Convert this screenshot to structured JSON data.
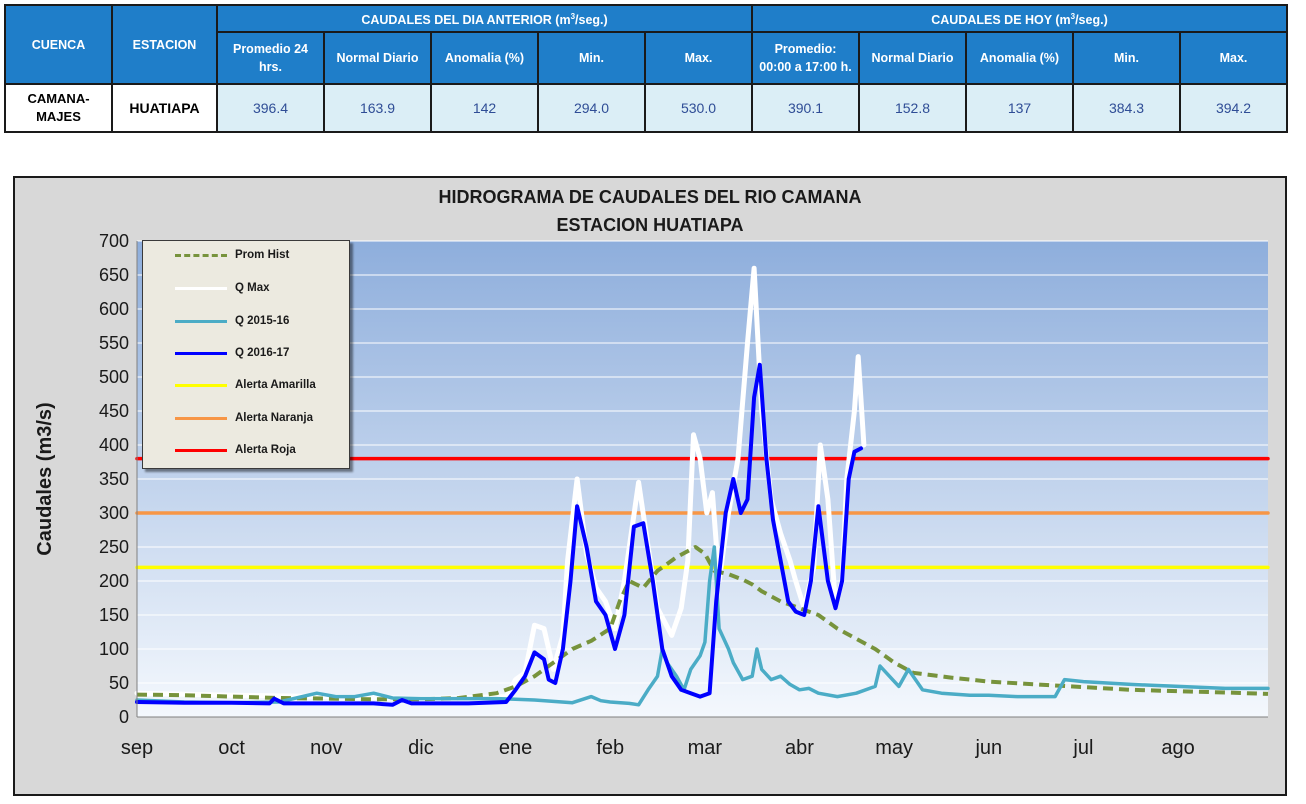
{
  "table": {
    "cuenca_header": "CUENCA",
    "estacion_header": "ESTACION",
    "prev_group_title": "CAUDALES DEL DIA ANTERIOR (m",
    "prev_group_sup": "3",
    "prev_group_tail": "/seg.)",
    "today_group_title": "CAUDALES DE HOY (m",
    "today_group_sup": "3",
    "today_group_tail": "/seg.)",
    "prev_cols": {
      "promedio_line1": "Promedio 24",
      "promedio_line2": "hrs.",
      "normal": "Normal Diario",
      "anomalia": "Anomalia (%)",
      "min": "Min.",
      "max": "Max."
    },
    "today_cols": {
      "promedio_line1": "Promedio:",
      "promedio_line2": "00:00 a 17:00 h.",
      "normal": "Normal Diario",
      "anomalia": "Anomalia (%)",
      "min": "Min.",
      "max": "Max."
    },
    "row": {
      "cuenca_line1": "CAMANA-",
      "cuenca_line2": "MAJES",
      "estacion": "HUATIAPA",
      "prev": {
        "promedio": "396.4",
        "normal": "163.9",
        "anomalia": "142",
        "min": "294.0",
        "max": "530.0"
      },
      "today": {
        "promedio": "390.1",
        "normal": "152.8",
        "anomalia": "137",
        "min": "384.3",
        "max": "394.2"
      }
    }
  },
  "chart_data": {
    "type": "line",
    "title": "HIDROGRAMA DE CAUDALES  DEL RIO CAMANA",
    "subtitle": "ESTACION HUATIAPA",
    "xlabel": "",
    "ylabel": "Caudales (m3/s)",
    "x_ticks": [
      "sep",
      "oct",
      "nov",
      "dic",
      "ene",
      "feb",
      "mar",
      "abr",
      "may",
      "jun",
      "jul",
      "ago"
    ],
    "xlim": [
      0,
      11.95
    ],
    "ylim": [
      0,
      700
    ],
    "y_ticks": [
      0,
      50,
      100,
      150,
      200,
      250,
      300,
      350,
      400,
      450,
      500,
      550,
      600,
      650,
      700
    ],
    "grid": "horizontal",
    "legend_position": "top-left",
    "series": [
      {
        "name": "Prom Hist",
        "color": "#77933c",
        "style": "dashed",
        "width": 4,
        "points": [
          [
            0,
            33
          ],
          [
            0.5,
            32
          ],
          [
            1,
            30
          ],
          [
            1.5,
            28
          ],
          [
            2,
            27
          ],
          [
            2.5,
            26
          ],
          [
            3,
            26
          ],
          [
            3.4,
            28
          ],
          [
            3.8,
            35
          ],
          [
            4,
            45
          ],
          [
            4.2,
            60
          ],
          [
            4.4,
            80
          ],
          [
            4.6,
            100
          ],
          [
            4.8,
            112
          ],
          [
            5,
            130
          ],
          [
            5.1,
            170
          ],
          [
            5.2,
            200
          ],
          [
            5.35,
            190
          ],
          [
            5.5,
            215
          ],
          [
            5.7,
            235
          ],
          [
            5.9,
            250
          ],
          [
            6,
            240
          ],
          [
            6.1,
            215
          ],
          [
            6.25,
            210
          ],
          [
            6.4,
            202
          ],
          [
            6.5,
            195
          ],
          [
            6.6,
            185
          ],
          [
            6.8,
            170
          ],
          [
            7,
            160
          ],
          [
            7.2,
            150
          ],
          [
            7.4,
            130
          ],
          [
            7.6,
            115
          ],
          [
            7.8,
            100
          ],
          [
            8,
            80
          ],
          [
            8.2,
            65
          ],
          [
            8.6,
            58
          ],
          [
            9,
            52
          ],
          [
            9.5,
            48
          ],
          [
            10,
            44
          ],
          [
            10.5,
            40
          ],
          [
            11,
            38
          ],
          [
            11.5,
            36
          ],
          [
            11.95,
            34
          ]
        ]
      },
      {
        "name": "Q Max",
        "color": "#ffffff",
        "style": "solid",
        "width": 5,
        "points": [
          [
            0,
            35
          ],
          [
            1,
            32
          ],
          [
            2,
            30
          ],
          [
            3,
            27
          ],
          [
            3.9,
            30
          ],
          [
            4,
            55
          ],
          [
            4.1,
            65
          ],
          [
            4.2,
            135
          ],
          [
            4.3,
            130
          ],
          [
            4.4,
            70
          ],
          [
            4.5,
            120
          ],
          [
            4.55,
            230
          ],
          [
            4.65,
            350
          ],
          [
            4.75,
            240
          ],
          [
            4.85,
            190
          ],
          [
            4.95,
            170
          ],
          [
            5.05,
            130
          ],
          [
            5.15,
            200
          ],
          [
            5.3,
            345
          ],
          [
            5.4,
            250
          ],
          [
            5.5,
            160
          ],
          [
            5.65,
            120
          ],
          [
            5.75,
            160
          ],
          [
            5.82,
            230
          ],
          [
            5.88,
            415
          ],
          [
            5.95,
            380
          ],
          [
            6.02,
            300
          ],
          [
            6.08,
            330
          ],
          [
            6.15,
            200
          ],
          [
            6.25,
            300
          ],
          [
            6.35,
            380
          ],
          [
            6.45,
            550
          ],
          [
            6.52,
            660
          ],
          [
            6.6,
            450
          ],
          [
            6.7,
            320
          ],
          [
            6.8,
            270
          ],
          [
            6.9,
            230
          ],
          [
            6.96,
            200
          ],
          [
            7.05,
            160
          ],
          [
            7.15,
            220
          ],
          [
            7.22,
            400
          ],
          [
            7.3,
            320
          ],
          [
            7.38,
            165
          ],
          [
            7.45,
            200
          ],
          [
            7.5,
            350
          ],
          [
            7.58,
            450
          ],
          [
            7.62,
            530
          ],
          [
            7.68,
            400
          ]
        ]
      },
      {
        "name": "Q 2015-16",
        "color": "#4bacc6",
        "style": "solid",
        "width": 3.5,
        "points": [
          [
            0,
            25
          ],
          [
            0.5,
            22
          ],
          [
            1,
            21
          ],
          [
            1.5,
            22
          ],
          [
            1.9,
            35
          ],
          [
            2.1,
            30
          ],
          [
            2.3,
            30
          ],
          [
            2.5,
            35
          ],
          [
            2.7,
            28
          ],
          [
            3,
            27
          ],
          [
            3.4,
            27
          ],
          [
            3.8,
            27
          ],
          [
            4,
            26
          ],
          [
            4.2,
            25
          ],
          [
            4.4,
            23
          ],
          [
            4.6,
            21
          ],
          [
            4.8,
            30
          ],
          [
            4.9,
            24
          ],
          [
            5,
            22
          ],
          [
            5.2,
            20
          ],
          [
            5.3,
            18
          ],
          [
            5.4,
            40
          ],
          [
            5.5,
            60
          ],
          [
            5.55,
            100
          ],
          [
            5.6,
            80
          ],
          [
            5.7,
            60
          ],
          [
            5.78,
            40
          ],
          [
            5.85,
            70
          ],
          [
            5.95,
            90
          ],
          [
            6.0,
            110
          ],
          [
            6.05,
            200
          ],
          [
            6.1,
            250
          ],
          [
            6.15,
            130
          ],
          [
            6.25,
            100
          ],
          [
            6.3,
            80
          ],
          [
            6.4,
            55
          ],
          [
            6.5,
            60
          ],
          [
            6.55,
            100
          ],
          [
            6.6,
            70
          ],
          [
            6.7,
            55
          ],
          [
            6.8,
            60
          ],
          [
            6.9,
            48
          ],
          [
            7,
            40
          ],
          [
            7.1,
            42
          ],
          [
            7.2,
            35
          ],
          [
            7.4,
            30
          ],
          [
            7.6,
            35
          ],
          [
            7.8,
            45
          ],
          [
            7.85,
            75
          ],
          [
            7.95,
            60
          ],
          [
            8.05,
            45
          ],
          [
            8.15,
            70
          ],
          [
            8.3,
            40
          ],
          [
            8.5,
            35
          ],
          [
            8.8,
            32
          ],
          [
            9,
            32
          ],
          [
            9.3,
            30
          ],
          [
            9.5,
            30
          ],
          [
            9.7,
            30
          ],
          [
            9.8,
            55
          ],
          [
            10,
            52
          ],
          [
            10.5,
            48
          ],
          [
            11,
            45
          ],
          [
            11.5,
            42
          ],
          [
            11.95,
            42
          ]
        ]
      },
      {
        "name": "Q 2016-17",
        "color": "#0000ff",
        "style": "solid",
        "width": 4,
        "points": [
          [
            0,
            22
          ],
          [
            0.5,
            21
          ],
          [
            1,
            21
          ],
          [
            1.4,
            20
          ],
          [
            1.45,
            27
          ],
          [
            1.55,
            20
          ],
          [
            2,
            20
          ],
          [
            2.5,
            20
          ],
          [
            2.7,
            18
          ],
          [
            2.8,
            25
          ],
          [
            2.9,
            20
          ],
          [
            3.5,
            20
          ],
          [
            3.9,
            22
          ],
          [
            4,
            40
          ],
          [
            4.1,
            60
          ],
          [
            4.2,
            95
          ],
          [
            4.3,
            85
          ],
          [
            4.35,
            55
          ],
          [
            4.42,
            50
          ],
          [
            4.5,
            100
          ],
          [
            4.58,
            200
          ],
          [
            4.65,
            310
          ],
          [
            4.75,
            250
          ],
          [
            4.85,
            170
          ],
          [
            4.95,
            150
          ],
          [
            5.05,
            100
          ],
          [
            5.15,
            150
          ],
          [
            5.25,
            280
          ],
          [
            5.35,
            285
          ],
          [
            5.45,
            200
          ],
          [
            5.55,
            100
          ],
          [
            5.65,
            60
          ],
          [
            5.75,
            40
          ],
          [
            5.85,
            35
          ],
          [
            5.95,
            30
          ],
          [
            6.05,
            35
          ],
          [
            6.12,
            170
          ],
          [
            6.22,
            300
          ],
          [
            6.3,
            350
          ],
          [
            6.38,
            300
          ],
          [
            6.45,
            320
          ],
          [
            6.52,
            470
          ],
          [
            6.58,
            518
          ],
          [
            6.65,
            380
          ],
          [
            6.72,
            290
          ],
          [
            6.8,
            230
          ],
          [
            6.88,
            170
          ],
          [
            6.96,
            155
          ],
          [
            7.05,
            150
          ],
          [
            7.12,
            200
          ],
          [
            7.2,
            310
          ],
          [
            7.3,
            200
          ],
          [
            7.38,
            160
          ],
          [
            7.45,
            200
          ],
          [
            7.52,
            350
          ],
          [
            7.58,
            390
          ],
          [
            7.65,
            395
          ]
        ]
      },
      {
        "name": "Alerta Amarilla",
        "color": "#ffff00",
        "style": "solid",
        "width": 3.5,
        "points": [
          [
            0,
            220
          ],
          [
            11.95,
            220
          ]
        ]
      },
      {
        "name": "Alerta Naranja",
        "color": "#f79646",
        "style": "solid",
        "width": 3.5,
        "points": [
          [
            0,
            300
          ],
          [
            11.95,
            300
          ]
        ]
      },
      {
        "name": "Alerta Roja",
        "color": "#ff0000",
        "style": "solid",
        "width": 3.5,
        "points": [
          [
            0,
            380
          ],
          [
            11.95,
            380
          ]
        ]
      }
    ]
  }
}
